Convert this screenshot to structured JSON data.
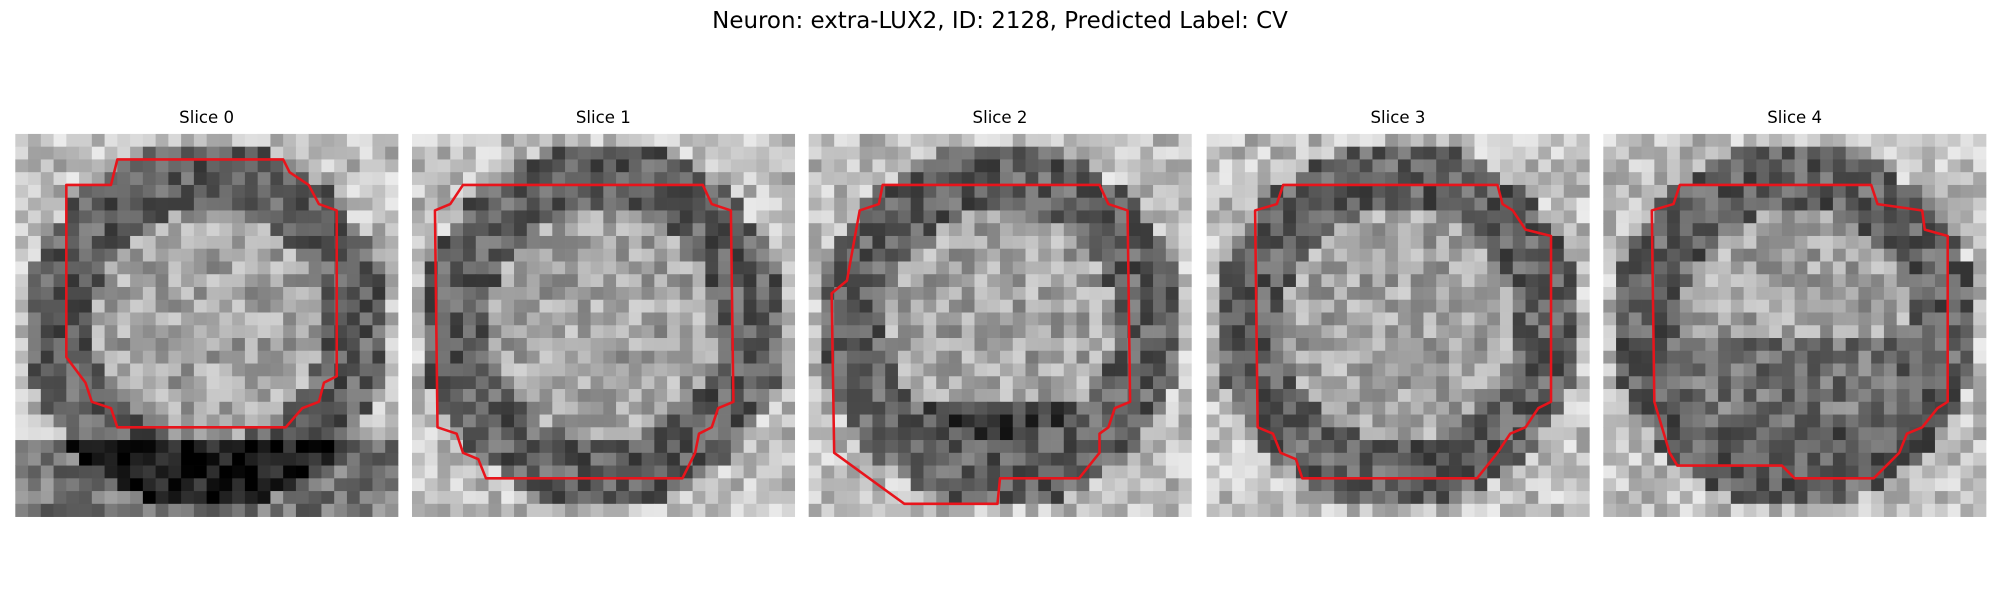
{
  "title": "Neuron: extra-LUX2, ID: 2128, Predicted Label: CV",
  "panels": [
    {
      "title": "Slice 0"
    },
    {
      "title": "Slice 1"
    },
    {
      "title": "Slice 2"
    },
    {
      "title": "Slice 3"
    },
    {
      "title": "Slice 4"
    }
  ]
}
